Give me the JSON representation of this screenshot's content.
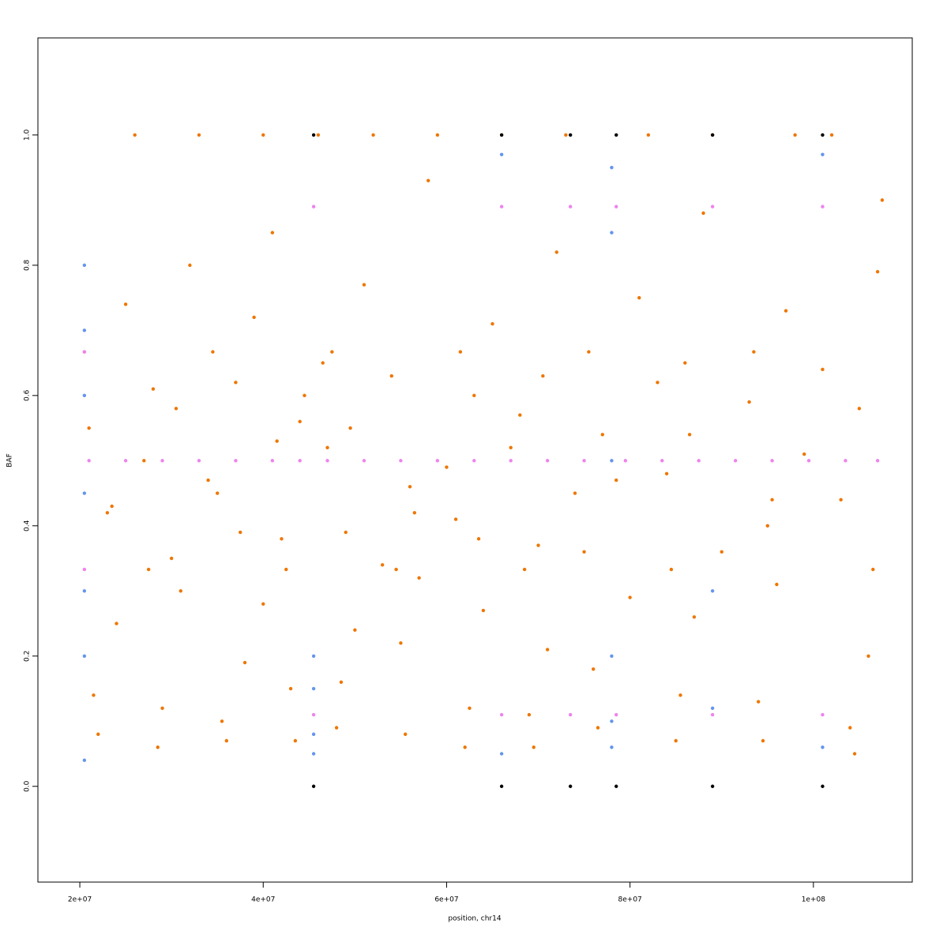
{
  "chart_data": {
    "type": "scatter",
    "xlabel": "position, chr14",
    "ylabel": "BAF",
    "xlim": [
      15430000,
      110780000
    ],
    "ylim": [
      -0.147,
      1.149
    ],
    "xticks": [
      {
        "value": 20000000,
        "label": "2e+07"
      },
      {
        "value": 40000000,
        "label": "4e+07"
      },
      {
        "value": 60000000,
        "label": "6e+07"
      },
      {
        "value": 80000000,
        "label": "8e+07"
      },
      {
        "value": 100000000,
        "label": "1e+08"
      }
    ],
    "yticks": [
      {
        "value": 0,
        "label": "0.0"
      },
      0.2,
      0.4,
      0.6,
      0.8,
      {
        "value": 1,
        "label": "1.0"
      }
    ],
    "series": [
      {
        "color": "#ee7600",
        "x": [
          21000000.0,
          28000000.0,
          35000000.0,
          42000000.0,
          47000000.0,
          54000000.0,
          61000000.0,
          68000000.0,
          75000000.0,
          84000000.0,
          93000000.0,
          103000000.0,
          23000000.0,
          30000000.0,
          37000000.0,
          44000000.0,
          49000000.0,
          56000000.0,
          63000000.0,
          70000000.0,
          77000000.0,
          86000000.0,
          95000000.0,
          105000000.0,
          22000000.0,
          29000000.0,
          36000000.0,
          43000000.0,
          48000000.0,
          55000000.0,
          62000000.0,
          69000000.0,
          76000000.0,
          85000000.0,
          94000000.0,
          104000000.0,
          24000000.0,
          31000000.0,
          38000000.0,
          40000000.0,
          50000000.0,
          57000000.0,
          64000000.0,
          71000000.0,
          80000000.0,
          87000000.0,
          96000000.0,
          106000000.0,
          25000000.0,
          32000000.0,
          39000000.0,
          41000000.0,
          51000000.0,
          58000000.0,
          65000000.0,
          72000000.0,
          81000000.0,
          88000000.0,
          97000000.0,
          107000000.0,
          26000000.0,
          33000000.0,
          40000000.0,
          46000000.0,
          52000000.0,
          59000000.0,
          66000000.0,
          73000000.0,
          82000000.0,
          89000000.0,
          98000000.0,
          102000000.0,
          27000000.0,
          34000000.0,
          41500000.0,
          46500000.0,
          53000000.0,
          60000000.0,
          67000000.0,
          74000000.0,
          83000000.0,
          90000000.0,
          99000000.0,
          101000000.0,
          20500000.0,
          27500000.0,
          34500000.0,
          42500000.0,
          47500000.0,
          54500000.0,
          61500000.0,
          68500000.0,
          75500000.0,
          84500000.0,
          93500000.0,
          106500000.0,
          21500000.0,
          28500000.0,
          35500000.0,
          43500000.0,
          48500000.0,
          55500000.0,
          62500000.0,
          69500000.0,
          76500000.0,
          85500000.0,
          94500000.0,
          104500000.0,
          23500000.0,
          30500000.0,
          37500000.0,
          44500000.0,
          49500000.0,
          56500000.0,
          63500000.0,
          70500000.0,
          78500000.0,
          86500000.0,
          95500000.0,
          107500000.0
        ],
        "y": [
          0.55,
          0.61,
          0.45,
          0.38,
          0.52,
          0.63,
          0.41,
          0.57,
          0.36,
          0.48,
          0.59,
          0.44,
          0.42,
          0.35,
          0.62,
          0.56,
          0.39,
          0.46,
          0.6,
          0.37,
          0.54,
          0.65,
          0.4,
          0.58,
          0.08,
          0.12,
          0.07,
          0.15,
          0.09,
          0.22,
          0.06,
          0.11,
          0.18,
          0.07,
          0.13,
          0.09,
          0.25,
          0.3,
          0.19,
          0.28,
          0.24,
          0.32,
          0.27,
          0.21,
          0.29,
          0.26,
          0.31,
          0.2,
          0.74,
          0.8,
          0.72,
          0.85,
          0.77,
          0.93,
          0.71,
          0.82,
          0.75,
          0.88,
          0.73,
          0.79,
          1,
          1,
          1,
          1,
          1,
          1,
          1,
          1,
          1,
          1,
          1,
          1,
          0.5,
          0.47,
          0.53,
          0.65,
          0.34,
          0.49,
          0.52,
          0.45,
          0.62,
          0.36,
          0.51,
          0.64,
          0.667,
          0.333,
          0.667,
          0.333,
          0.667,
          0.333,
          0.667,
          0.333,
          0.667,
          0.333,
          0.667,
          0.333,
          0.14,
          0.06,
          0.1,
          0.07,
          0.16,
          0.08,
          0.12,
          0.06,
          0.09,
          0.14,
          0.07,
          0.05,
          0.43,
          0.58,
          0.39,
          0.6,
          0.55,
          0.42,
          0.38,
          0.63,
          0.47,
          0.54,
          0.44,
          0.9
        ]
      },
      {
        "color": "#6495ed",
        "x": [
          20500000.0,
          20500000.0,
          20500000.0,
          20500000.0,
          20500000.0,
          20500000.0,
          20500000.0,
          45500000.0,
          45500000.0,
          45500000.0,
          45500000.0,
          78000000.0,
          78000000.0,
          78000000.0,
          78000000.0,
          78000000.0,
          78000000.0,
          66000000.0,
          66000000.0,
          101000000.0,
          101000000.0,
          89000000.0,
          89000000.0
        ],
        "y": [
          0.8,
          0.7,
          0.6,
          0.45,
          0.3,
          0.2,
          0.04,
          0.2,
          0.15,
          0.08,
          0.05,
          0.95,
          0.85,
          0.5,
          0.2,
          0.1,
          0.06,
          0.97,
          0.05,
          0.97,
          0.06,
          0.3,
          0.12
        ]
      },
      {
        "color": "#ee82ee",
        "x": [
          21000000.0,
          25000000.0,
          29000000.0,
          33000000.0,
          37000000.0,
          41000000.0,
          44000000.0,
          47000000.0,
          51000000.0,
          55000000.0,
          59000000.0,
          63000000.0,
          67000000.0,
          71000000.0,
          75000000.0,
          79500000.0,
          83500000.0,
          87500000.0,
          91500000.0,
          95500000.0,
          99500000.0,
          103500000.0,
          107000000.0,
          45500000.0,
          66000000.0,
          73500000.0,
          78500000.0,
          89000000.0,
          101000000.0,
          45500000.0,
          66000000.0,
          73500000.0,
          78500000.0,
          89000000.0,
          101000000.0,
          20500000.0,
          20500000.0
        ],
        "y": [
          0.5,
          0.5,
          0.5,
          0.5,
          0.5,
          0.5,
          0.5,
          0.5,
          0.5,
          0.5,
          0.5,
          0.5,
          0.5,
          0.5,
          0.5,
          0.5,
          0.5,
          0.5,
          0.5,
          0.5,
          0.5,
          0.5,
          0.5,
          0.89,
          0.89,
          0.89,
          0.89,
          0.89,
          0.89,
          0.11,
          0.11,
          0.11,
          0.11,
          0.11,
          0.11,
          0.667,
          0.333
        ]
      },
      {
        "color": "#000000",
        "x": [
          45500000.0,
          66000000.0,
          73500000.0,
          78500000.0,
          89000000.0,
          101000000.0,
          45500000.0,
          66000000.0,
          73500000.0,
          78500000.0,
          89000000.0,
          101000000.0
        ],
        "y": [
          1,
          1,
          1,
          1,
          1,
          1,
          0,
          0,
          0,
          0,
          0,
          0
        ]
      }
    ]
  }
}
